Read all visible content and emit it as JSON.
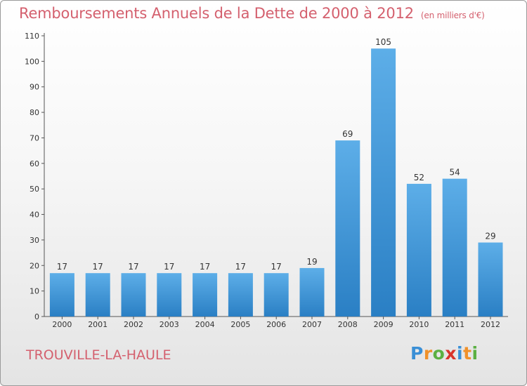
{
  "chart_data": {
    "type": "bar",
    "title": "Remboursements Annuels de la Dette de 2000 à 2012",
    "unit_note": "(en milliers d'€)",
    "categories": [
      "2000",
      "2001",
      "2002",
      "2003",
      "2004",
      "2005",
      "2006",
      "2007",
      "2008",
      "2009",
      "2010",
      "2011",
      "2012"
    ],
    "values": [
      17,
      17,
      17,
      17,
      17,
      17,
      17,
      19,
      69,
      105,
      52,
      54,
      29
    ],
    "ylim": [
      0,
      110
    ],
    "yticks": [
      0,
      10,
      20,
      30,
      40,
      50,
      60,
      70,
      80,
      90,
      100,
      110
    ],
    "grid": false,
    "bar_color_top": "#5daee8",
    "bar_color_bottom": "#2a7fc4"
  },
  "commune": "TROUVILLE-LA-HAULE",
  "logo": {
    "letters": [
      "P",
      "r",
      "o",
      "x",
      "i",
      "t",
      "i"
    ],
    "colors": [
      "#3a8fd6",
      "#f0912a",
      "#5bb042",
      "#d9342b",
      "#3a8fd6",
      "#f0912a",
      "#5bb042"
    ]
  },
  "colors": {
    "title": "#d4606e"
  }
}
